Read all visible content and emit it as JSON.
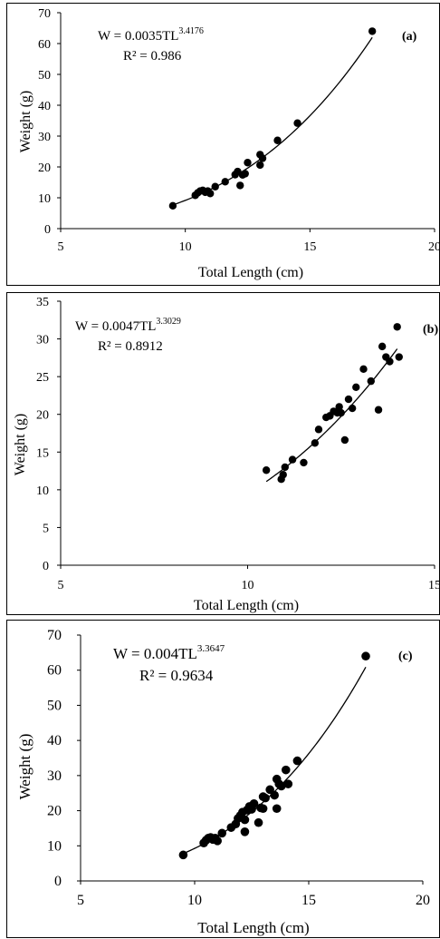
{
  "chart_data": [
    {
      "type": "scatter",
      "panel_label": "(a)",
      "equation": {
        "base": "W = 0.0035TL",
        "exponent": "3.4176"
      },
      "r_squared": "R² = 0.986",
      "xlabel": "Total Length (cm)",
      "ylabel": "Weight (g)",
      "xlim": [
        5,
        20
      ],
      "ylim": [
        0,
        70
      ],
      "x_ticks": [
        "5",
        "10",
        "15",
        "20"
      ],
      "y_ticks": [
        "0",
        "10",
        "20",
        "30",
        "40",
        "50",
        "60",
        "70"
      ],
      "trendline": {
        "type": "power",
        "a": 0.0035,
        "b": 3.4176,
        "x_range": [
          9.5,
          17.5
        ]
      },
      "series": [
        {
          "x": [
            9.5,
            10.4,
            10.5,
            10.6,
            10.7,
            10.8,
            10.9,
            11.0,
            11.2,
            11.6,
            12.0,
            12.1,
            12.2,
            12.3,
            12.4,
            12.5,
            13.0,
            13.0,
            13.1,
            13.7,
            14.5,
            17.5
          ],
          "y": [
            7.4,
            10.8,
            11.6,
            12.2,
            12.4,
            11.8,
            12.2,
            11.4,
            13.6,
            15.2,
            17.5,
            18.5,
            14.0,
            17.4,
            17.8,
            21.4,
            20.6,
            24.0,
            22.8,
            28.6,
            34.2,
            64.0
          ]
        }
      ]
    },
    {
      "type": "scatter",
      "panel_label": "(b)",
      "equation": {
        "base": "W = 0.0047TL",
        "exponent": "3.3029"
      },
      "r_squared": "R² = 0.8912",
      "xlabel": "Total Length (cm)",
      "ylabel": "Weight (g)",
      "xlim": [
        5,
        15
      ],
      "ylim": [
        0,
        35
      ],
      "x_ticks": [
        "5",
        "10",
        "15"
      ],
      "y_ticks": [
        "0",
        "5",
        "10",
        "15",
        "20",
        "25",
        "30",
        "35"
      ],
      "trendline": {
        "type": "power",
        "a": 0.0047,
        "b": 3.3029,
        "x_range": [
          10.5,
          14.0
        ]
      },
      "series": [
        {
          "x": [
            10.5,
            10.9,
            10.95,
            11.0,
            11.2,
            11.5,
            11.8,
            11.9,
            12.1,
            12.2,
            12.3,
            12.4,
            12.45,
            12.5,
            12.6,
            12.7,
            12.8,
            12.9,
            13.1,
            13.3,
            13.5,
            13.6,
            13.7,
            13.8,
            14.0,
            14.05
          ],
          "y": [
            12.6,
            11.4,
            12.0,
            13.0,
            14.0,
            13.6,
            16.2,
            18.0,
            19.6,
            19.8,
            20.4,
            20.2,
            21.0,
            20.2,
            16.6,
            22.0,
            20.8,
            23.6,
            26.0,
            24.4,
            20.6,
            29.0,
            27.6,
            27.0,
            31.6,
            27.6
          ]
        }
      ]
    },
    {
      "type": "scatter",
      "panel_label": "(c)",
      "equation": {
        "base": "W = 0.004TL",
        "exponent": "3.3647"
      },
      "r_squared": "R² = 0.9634",
      "xlabel": "Total Length (cm)",
      "ylabel": "Weight (g)",
      "xlim": [
        5,
        20
      ],
      "ylim": [
        0,
        70
      ],
      "x_ticks": [
        "5",
        "10",
        "15",
        "20"
      ],
      "y_ticks": [
        "0",
        "10",
        "20",
        "30",
        "40",
        "50",
        "60",
        "70"
      ],
      "trendline": {
        "type": "power",
        "a": 0.004,
        "b": 3.3647,
        "x_range": [
          9.5,
          17.5
        ]
      },
      "series": [
        {
          "x": [
            9.5,
            10.4,
            10.5,
            10.6,
            10.7,
            10.8,
            10.9,
            11.0,
            11.2,
            11.6,
            11.9,
            12.0,
            12.1,
            12.2,
            12.3,
            12.4,
            12.5,
            12.6,
            12.8,
            13.0,
            13.0,
            13.1,
            13.3,
            13.5,
            13.6,
            13.7,
            13.8,
            14.0,
            14.1,
            14.5,
            17.5,
            12.2,
            11.8,
            12.9,
            13.6
          ],
          "y": [
            7.4,
            10.8,
            11.6,
            12.2,
            12.4,
            11.8,
            12.2,
            11.4,
            13.6,
            15.2,
            17.8,
            18.6,
            19.6,
            14.0,
            20.2,
            21.2,
            20.4,
            22.0,
            16.6,
            20.6,
            24.0,
            23.6,
            26.0,
            24.4,
            29.0,
            27.6,
            27.0,
            31.6,
            27.6,
            34.2,
            64.0,
            17.4,
            16.2,
            20.8,
            20.6
          ]
        }
      ]
    }
  ]
}
